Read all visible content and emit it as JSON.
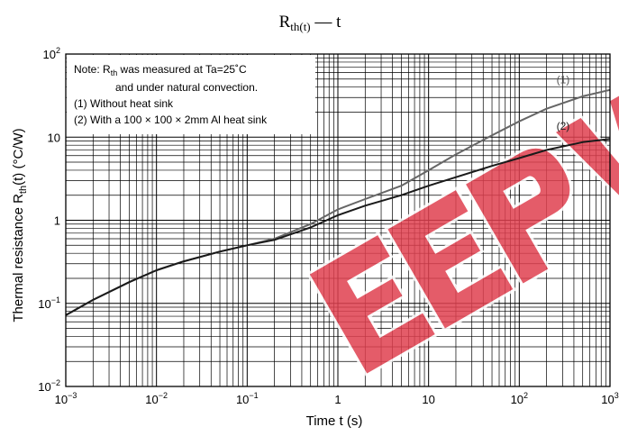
{
  "chart_data": {
    "type": "line",
    "title": {
      "main": "R",
      "sub": "th(t)",
      "rest": " — t"
    },
    "xlabel": {
      "main": "Time   t   (s)"
    },
    "ylabel": {
      "part1": "Thermal resistance   R",
      "sub": "th",
      "part2": "(t)   (°C/W)"
    },
    "x_scale": "log",
    "y_scale": "log",
    "xlim": [
      0.001,
      1000
    ],
    "ylim": [
      0.01,
      100
    ],
    "grid": true,
    "x_ticks": [
      {
        "value": 0.001,
        "base": "10",
        "exp": "−3"
      },
      {
        "value": 0.01,
        "base": "10",
        "exp": "−2"
      },
      {
        "value": 0.1,
        "base": "10",
        "exp": "−1"
      },
      {
        "value": 1,
        "base": "1",
        "exp": ""
      },
      {
        "value": 10,
        "base": "10",
        "exp": ""
      },
      {
        "value": 100,
        "base": "10",
        "exp": "2"
      },
      {
        "value": 1000,
        "base": "10",
        "exp": "3"
      }
    ],
    "y_ticks": [
      {
        "value": 0.01,
        "base": "10",
        "exp": "−2"
      },
      {
        "value": 0.1,
        "base": "10",
        "exp": "−1"
      },
      {
        "value": 1,
        "base": "1",
        "exp": ""
      },
      {
        "value": 10,
        "base": "10",
        "exp": ""
      },
      {
        "value": 100,
        "base": "10",
        "exp": "2"
      }
    ],
    "note": {
      "line1_prefix": "Note:  R",
      "line1_sub": "th",
      "line1_suffix": " was measured at Ta=25˚C",
      "line2": "and under natural convection.",
      "line3": "(1) Without heat sink",
      "line4": "(2) With a 100 × 100 × 2mm Al heat sink"
    },
    "series": [
      {
        "name": "(1)",
        "color": "#666666",
        "x": [
          0.001,
          0.002,
          0.005,
          0.01,
          0.02,
          0.05,
          0.1,
          0.2,
          0.5,
          1,
          2,
          5,
          10,
          20,
          50,
          100,
          200,
          500,
          1000
        ],
        "y": [
          0.072,
          0.11,
          0.18,
          0.25,
          0.32,
          0.42,
          0.5,
          0.6,
          0.9,
          1.35,
          1.8,
          2.6,
          4.0,
          6.2,
          10.5,
          15.5,
          22,
          31,
          37
        ]
      },
      {
        "name": "(2)",
        "color": "#1a1a1a",
        "x": [
          0.001,
          0.002,
          0.005,
          0.01,
          0.02,
          0.05,
          0.1,
          0.2,
          0.5,
          1,
          2,
          5,
          10,
          20,
          50,
          100,
          200,
          500,
          1000
        ],
        "y": [
          0.072,
          0.11,
          0.18,
          0.25,
          0.32,
          0.42,
          0.5,
          0.58,
          0.82,
          1.15,
          1.5,
          2.0,
          2.6,
          3.3,
          4.5,
          5.6,
          7.0,
          8.7,
          9.5
        ]
      }
    ],
    "watermark_color": "#e0404f"
  }
}
